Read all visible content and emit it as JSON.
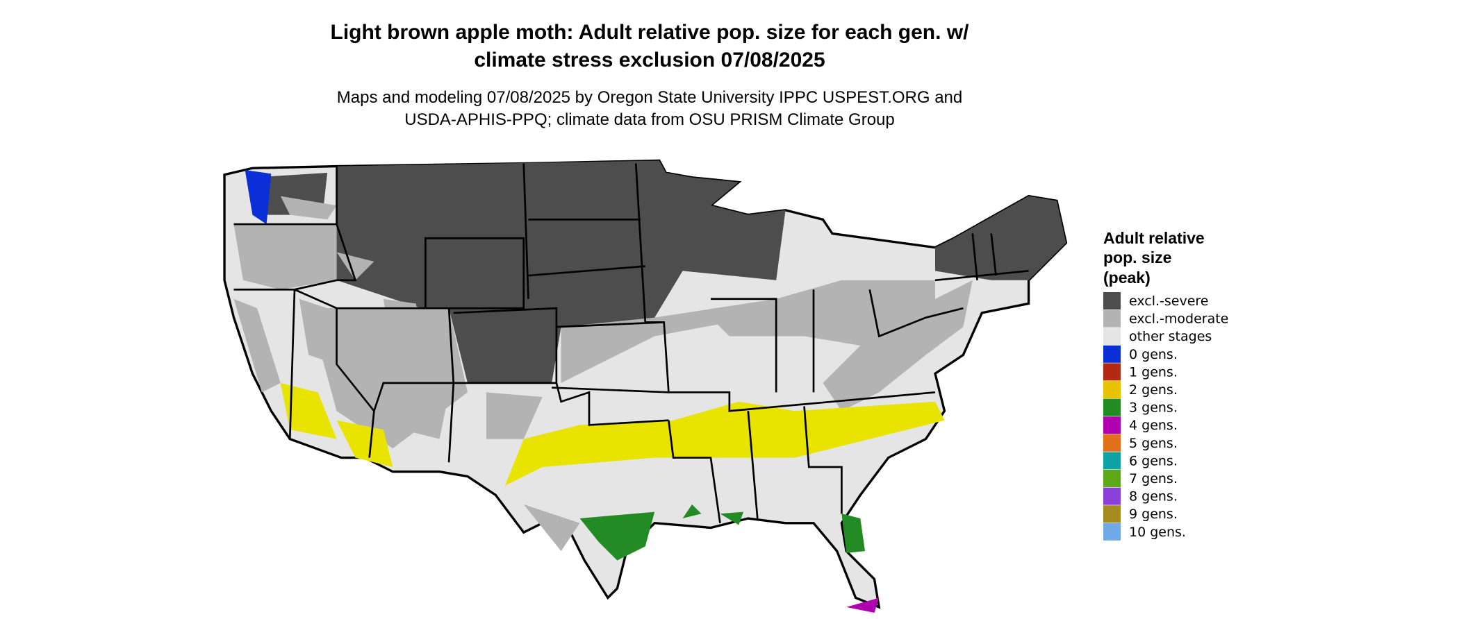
{
  "header": {
    "title": [
      "Light brown apple moth: Adult relative pop. size for each gen. w/",
      "climate stress exclusion 07/08/2025"
    ],
    "subtitle": [
      "Maps and modeling 07/08/2025 by Oregon State University IPPC USPEST.ORG and",
      "USDA-APHIS-PPQ; climate data from OSU PRISM Climate Group"
    ]
  },
  "legend": {
    "title": [
      "Adult relative",
      "pop. size",
      "(peak)"
    ],
    "items": [
      {
        "label": "excl.-severe",
        "color": "#4d4d4d"
      },
      {
        "label": "excl.-moderate",
        "color": "#b3b3b3"
      },
      {
        "label": "other stages",
        "color": "#e5e5e5"
      },
      {
        "label": "0 gens.",
        "color": "#0a2fd6"
      },
      {
        "label": "1 gens.",
        "color": "#b22a10"
      },
      {
        "label": "2 gens.",
        "color": "#e8c400"
      },
      {
        "label": "3 gens.",
        "color": "#238b23"
      },
      {
        "label": "4 gens.",
        "color": "#b000b0"
      },
      {
        "label": "5 gens.",
        "color": "#e0701a"
      },
      {
        "label": "6 gens.",
        "color": "#10a3a3"
      },
      {
        "label": "7 gens.",
        "color": "#5ca818"
      },
      {
        "label": "8 gens.",
        "color": "#8a40d8"
      },
      {
        "label": "9 gens.",
        "color": "#a58a20"
      },
      {
        "label": "10 gens.",
        "color": "#70a8e8"
      }
    ]
  }
}
